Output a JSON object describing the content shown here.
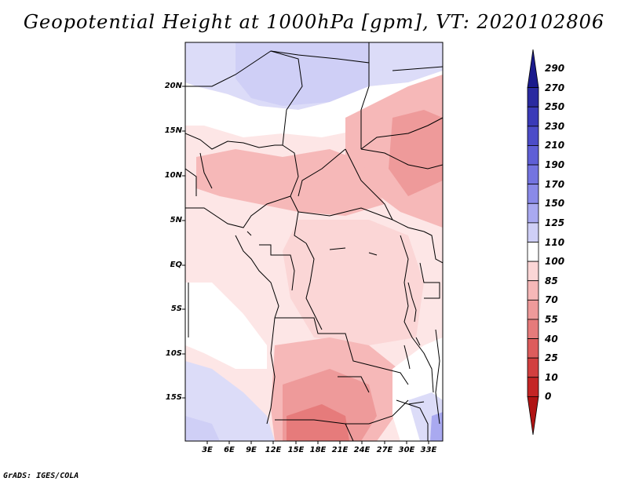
{
  "title": "Geopotential Height at 1000hPa [gpm], VT: 2020102806",
  "credit": "GrADS: IGES/COLA",
  "map": {
    "lat_labels": [
      "20N",
      "15N",
      "10N",
      "5N",
      "EQ",
      "5S",
      "10S",
      "15S"
    ],
    "lon_labels": [
      "3E",
      "6E",
      "9E",
      "12E",
      "15E",
      "18E",
      "21E",
      "24E",
      "27E",
      "30E",
      "33E"
    ]
  },
  "colorbar": {
    "labels": [
      "290",
      "270",
      "250",
      "230",
      "210",
      "190",
      "170",
      "150",
      "125",
      "110",
      "100",
      "85",
      "70",
      "55",
      "40",
      "25",
      "10",
      "0"
    ],
    "colors": [
      "#1b1b8c",
      "#2a2aa0",
      "#3a3ab8",
      "#4c4cc8",
      "#5f5fd6",
      "#7474e0",
      "#8a8ae8",
      "#a9a9f0",
      "#cfcff6",
      "#ffffff",
      "#fbd6d6",
      "#f6b8b8",
      "#ee9a9a",
      "#e67b7b",
      "#dd5c5c",
      "#d23f3f",
      "#c42525",
      "#b01414"
    ]
  }
}
